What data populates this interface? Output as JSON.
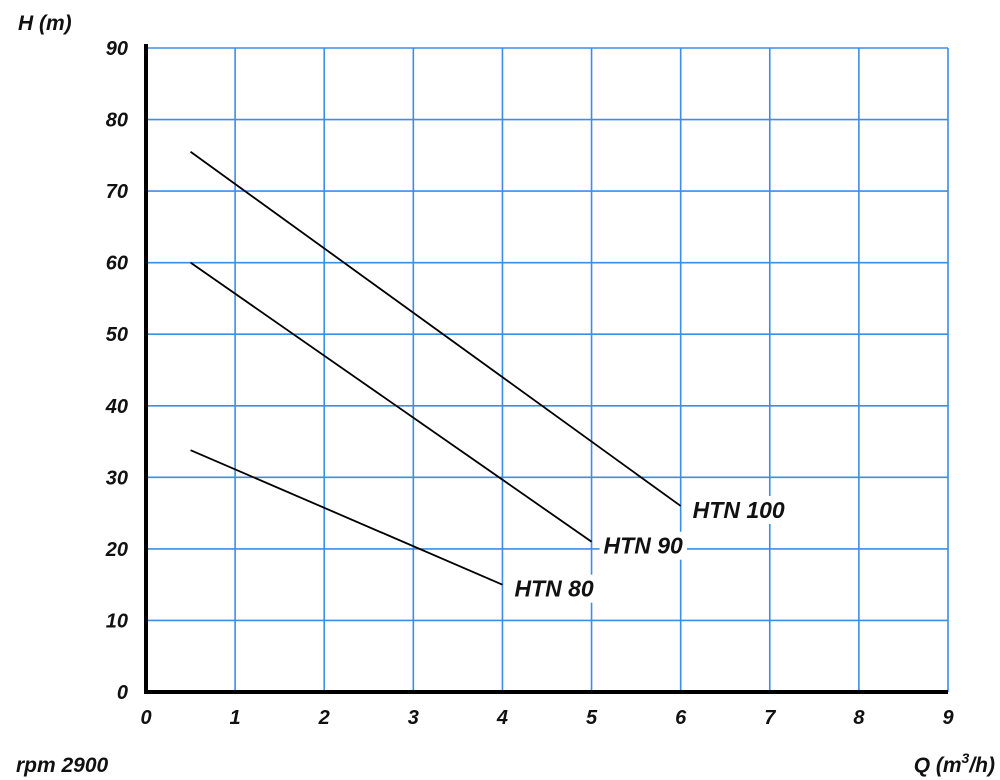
{
  "chart_data": {
    "type": "line",
    "title": "",
    "xlabel": {
      "main": "Q  (m",
      "sup": "3",
      "rest": "/h)"
    },
    "ylabel": "H  (m)",
    "xlim": [
      0,
      9
    ],
    "ylim": [
      0,
      90
    ],
    "x_ticks": [
      "0",
      "1",
      "2",
      "3",
      "4",
      "5",
      "6",
      "7",
      "8",
      "9"
    ],
    "y_ticks": [
      "0",
      "10",
      "20",
      "30",
      "40",
      "50",
      "60",
      "70",
      "80",
      "90"
    ],
    "grid": true,
    "series": [
      {
        "name": "HTN 100",
        "x": [
          0.5,
          6.0
        ],
        "y": [
          75.5,
          26.0
        ]
      },
      {
        "name": "HTN 90",
        "x": [
          0.5,
          5.0
        ],
        "y": [
          60.0,
          21.0
        ]
      },
      {
        "name": "HTN 80",
        "x": [
          0.5,
          4.0
        ],
        "y": [
          33.8,
          15.0
        ]
      }
    ],
    "note": "rpm 2900"
  },
  "colors": {
    "grid": "#3a8ee6",
    "axis": "#000000",
    "line": "#000000"
  }
}
